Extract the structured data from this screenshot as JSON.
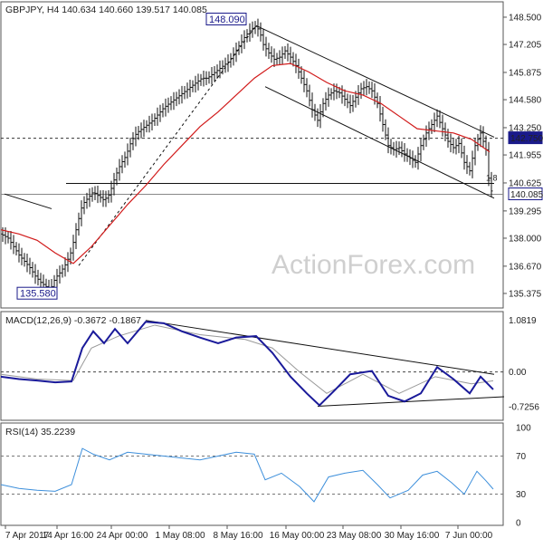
{
  "header": {
    "price": "GBPJPY, H4  140.634 140.660 139.517 140.085",
    "macd": "MACD(12,26,9) -0.3672 -0.1867",
    "rsi": "RSI(14) 35.2239"
  },
  "watermark": "ActionForex.com",
  "colors": {
    "candle": "#111111",
    "sma": "#d11a1a",
    "macd_line": "#1a1a9a",
    "macd_signal": "#999999",
    "rsi_line": "#3d8fdb",
    "trendline": "#111111",
    "level_tag": "#1a1a8a"
  },
  "chart_data": [
    {
      "type": "candlestick",
      "pane": "price",
      "symbol": "GBPJPY",
      "timeframe": "H4",
      "ylim": [
        134.9,
        148.8
      ],
      "yticks": [
        "148.500",
        "147.205",
        "145.875",
        "144.580",
        "143.250",
        "141.955",
        "140.625",
        "139.295",
        "138.000",
        "136.670",
        "135.375"
      ],
      "xticks": [
        "7 Apr 2017",
        "14 Apr 16:00",
        "24 Apr 00:00",
        "1 May 08:00",
        "8 May 16:00",
        "16 May 00:00",
        "23 May 08:00",
        "30 May 16:00",
        "7 Jun 00:00"
      ],
      "ohlc": [
        140.634,
        140.66,
        139.517,
        140.085
      ],
      "close_path": [
        {
          "x": 0,
          "y": 138.2
        },
        {
          "x": 8,
          "y": 138.0
        },
        {
          "x": 14,
          "y": 137.6
        },
        {
          "x": 20,
          "y": 137.2
        },
        {
          "x": 26,
          "y": 136.9
        },
        {
          "x": 32,
          "y": 136.6
        },
        {
          "x": 38,
          "y": 136.2
        },
        {
          "x": 44,
          "y": 135.9
        },
        {
          "x": 50,
          "y": 135.7
        },
        {
          "x": 55,
          "y": 135.6
        },
        {
          "x": 60,
          "y": 136.1
        },
        {
          "x": 66,
          "y": 136.4
        },
        {
          "x": 72,
          "y": 136.8
        },
        {
          "x": 78,
          "y": 137.4
        },
        {
          "x": 84,
          "y": 138.6
        },
        {
          "x": 90,
          "y": 139.6
        },
        {
          "x": 96,
          "y": 139.9
        },
        {
          "x": 102,
          "y": 140.2
        },
        {
          "x": 108,
          "y": 140.0
        },
        {
          "x": 114,
          "y": 139.8
        },
        {
          "x": 120,
          "y": 140.1
        },
        {
          "x": 126,
          "y": 140.9
        },
        {
          "x": 132,
          "y": 141.5
        },
        {
          "x": 138,
          "y": 141.9
        },
        {
          "x": 144,
          "y": 142.6
        },
        {
          "x": 150,
          "y": 143.0
        },
        {
          "x": 156,
          "y": 143.2
        },
        {
          "x": 162,
          "y": 143.4
        },
        {
          "x": 168,
          "y": 143.6
        },
        {
          "x": 174,
          "y": 143.9
        },
        {
          "x": 180,
          "y": 144.2
        },
        {
          "x": 186,
          "y": 144.4
        },
        {
          "x": 192,
          "y": 144.6
        },
        {
          "x": 198,
          "y": 144.8
        },
        {
          "x": 204,
          "y": 145.0
        },
        {
          "x": 210,
          "y": 145.2
        },
        {
          "x": 216,
          "y": 145.4
        },
        {
          "x": 222,
          "y": 145.6
        },
        {
          "x": 228,
          "y": 145.6
        },
        {
          "x": 234,
          "y": 145.8
        },
        {
          "x": 240,
          "y": 146.0
        },
        {
          "x": 246,
          "y": 146.2
        },
        {
          "x": 252,
          "y": 146.4
        },
        {
          "x": 258,
          "y": 146.8
        },
        {
          "x": 264,
          "y": 147.2
        },
        {
          "x": 270,
          "y": 147.6
        },
        {
          "x": 276,
          "y": 147.9
        },
        {
          "x": 282,
          "y": 148.09
        },
        {
          "x": 286,
          "y": 147.8
        },
        {
          "x": 290,
          "y": 147.2
        },
        {
          "x": 296,
          "y": 146.8
        },
        {
          "x": 302,
          "y": 146.5
        },
        {
          "x": 308,
          "y": 146.6
        },
        {
          "x": 314,
          "y": 146.9
        },
        {
          "x": 320,
          "y": 146.6
        },
        {
          "x": 326,
          "y": 146.2
        },
        {
          "x": 332,
          "y": 145.6
        },
        {
          "x": 338,
          "y": 145.0
        },
        {
          "x": 344,
          "y": 144.1
        },
        {
          "x": 350,
          "y": 143.6
        },
        {
          "x": 356,
          "y": 144.4
        },
        {
          "x": 362,
          "y": 144.8
        },
        {
          "x": 368,
          "y": 145.0
        },
        {
          "x": 374,
          "y": 144.9
        },
        {
          "x": 380,
          "y": 144.6
        },
        {
          "x": 386,
          "y": 144.3
        },
        {
          "x": 392,
          "y": 144.7
        },
        {
          "x": 398,
          "y": 145.1
        },
        {
          "x": 404,
          "y": 145.2
        },
        {
          "x": 410,
          "y": 145.0
        },
        {
          "x": 416,
          "y": 144.4
        },
        {
          "x": 422,
          "y": 143.4
        },
        {
          "x": 428,
          "y": 142.4
        },
        {
          "x": 434,
          "y": 142.2
        },
        {
          "x": 440,
          "y": 142.3
        },
        {
          "x": 446,
          "y": 142.0
        },
        {
          "x": 452,
          "y": 141.8
        },
        {
          "x": 458,
          "y": 141.6
        },
        {
          "x": 464,
          "y": 142.4
        },
        {
          "x": 470,
          "y": 143.0
        },
        {
          "x": 476,
          "y": 143.4
        },
        {
          "x": 482,
          "y": 143.8
        },
        {
          "x": 488,
          "y": 143.2
        },
        {
          "x": 494,
          "y": 142.6
        },
        {
          "x": 500,
          "y": 142.3
        },
        {
          "x": 506,
          "y": 142.5
        },
        {
          "x": 512,
          "y": 141.6
        },
        {
          "x": 518,
          "y": 141.2
        },
        {
          "x": 524,
          "y": 142.4
        },
        {
          "x": 530,
          "y": 143.0
        },
        {
          "x": 536,
          "y": 142.2
        },
        {
          "x": 540,
          "y": 140.4
        },
        {
          "x": 544,
          "y": 140.085
        }
      ],
      "sma_path": [
        {
          "x": 0,
          "y": 138.4
        },
        {
          "x": 20,
          "y": 138.2
        },
        {
          "x": 40,
          "y": 137.9
        },
        {
          "x": 60,
          "y": 137.3
        },
        {
          "x": 80,
          "y": 136.8
        },
        {
          "x": 100,
          "y": 137.6
        },
        {
          "x": 120,
          "y": 138.6
        },
        {
          "x": 140,
          "y": 139.6
        },
        {
          "x": 160,
          "y": 140.5
        },
        {
          "x": 180,
          "y": 141.5
        },
        {
          "x": 200,
          "y": 142.4
        },
        {
          "x": 220,
          "y": 143.3
        },
        {
          "x": 240,
          "y": 144.0
        },
        {
          "x": 260,
          "y": 144.8
        },
        {
          "x": 280,
          "y": 145.6
        },
        {
          "x": 300,
          "y": 146.2
        },
        {
          "x": 320,
          "y": 146.3
        },
        {
          "x": 340,
          "y": 145.9
        },
        {
          "x": 360,
          "y": 145.4
        },
        {
          "x": 380,
          "y": 145.0
        },
        {
          "x": 400,
          "y": 144.8
        },
        {
          "x": 420,
          "y": 144.4
        },
        {
          "x": 440,
          "y": 143.8
        },
        {
          "x": 460,
          "y": 143.2
        },
        {
          "x": 480,
          "y": 143.1
        },
        {
          "x": 500,
          "y": 143.0
        },
        {
          "x": 520,
          "y": 142.7
        },
        {
          "x": 540,
          "y": 142.1
        }
      ],
      "annotations": [
        {
          "label": "148.090",
          "x": 282,
          "y": 148.09
        },
        {
          "label": "135.580",
          "x": 55,
          "y": 135.58
        },
        {
          "label": "142.750",
          "level": 142.75,
          "style": "dashed"
        },
        {
          "label": "140.085",
          "level": 140.085,
          "style": "solid"
        },
        {
          "label": "1.8"
        }
      ],
      "trendlines": [
        {
          "name": "channel-top",
          "from": {
            "x": 282,
            "y": 148.1
          },
          "to": {
            "x": 545,
            "y": 142.8
          }
        },
        {
          "name": "channel-bottom",
          "from": {
            "x": 292,
            "y": 145.2
          },
          "to": {
            "x": 545,
            "y": 139.9
          }
        },
        {
          "name": "support-dashed",
          "from": {
            "x": 86,
            "y": 136.7
          },
          "to": {
            "x": 282,
            "y": 148.1
          }
        },
        {
          "name": "horizontal-support",
          "from": {
            "x": 72,
            "y": 140.6
          },
          "to": {
            "x": 545,
            "y": 140.6
          }
        },
        {
          "name": "left-line",
          "from": {
            "x": 4,
            "y": 140.1
          },
          "to": {
            "x": 56,
            "y": 139.4
          }
        }
      ]
    },
    {
      "type": "line",
      "pane": "macd",
      "ylim": [
        -0.9,
        1.15
      ],
      "yticks": [
        "1.0819",
        "0.00",
        "-0.7256"
      ],
      "series": [
        {
          "name": "MACD",
          "values": [
            {
              "x": 0,
              "y": -0.1
            },
            {
              "x": 20,
              "y": -0.15
            },
            {
              "x": 40,
              "y": -0.18
            },
            {
              "x": 60,
              "y": -0.22
            },
            {
              "x": 78,
              "y": -0.2
            },
            {
              "x": 90,
              "y": 0.5
            },
            {
              "x": 102,
              "y": 0.85
            },
            {
              "x": 114,
              "y": 0.6
            },
            {
              "x": 126,
              "y": 0.9
            },
            {
              "x": 140,
              "y": 0.6
            },
            {
              "x": 160,
              "y": 1.05
            },
            {
              "x": 180,
              "y": 1.02
            },
            {
              "x": 200,
              "y": 0.85
            },
            {
              "x": 220,
              "y": 0.72
            },
            {
              "x": 240,
              "y": 0.6
            },
            {
              "x": 260,
              "y": 0.72
            },
            {
              "x": 282,
              "y": 0.75
            },
            {
              "x": 300,
              "y": 0.4
            },
            {
              "x": 320,
              "y": -0.1
            },
            {
              "x": 338,
              "y": -0.45
            },
            {
              "x": 352,
              "y": -0.7
            },
            {
              "x": 368,
              "y": -0.4
            },
            {
              "x": 386,
              "y": -0.05
            },
            {
              "x": 410,
              "y": 0.02
            },
            {
              "x": 428,
              "y": -0.5
            },
            {
              "x": 446,
              "y": -0.62
            },
            {
              "x": 464,
              "y": -0.45
            },
            {
              "x": 482,
              "y": 0.1
            },
            {
              "x": 500,
              "y": -0.15
            },
            {
              "x": 518,
              "y": -0.45
            },
            {
              "x": 530,
              "y": -0.1
            },
            {
              "x": 544,
              "y": -0.3672
            }
          ]
        },
        {
          "name": "Signal",
          "values": [
            {
              "x": 0,
              "y": -0.05
            },
            {
              "x": 40,
              "y": -0.15
            },
            {
              "x": 80,
              "y": -0.18
            },
            {
              "x": 100,
              "y": 0.5
            },
            {
              "x": 130,
              "y": 0.75
            },
            {
              "x": 170,
              "y": 0.98
            },
            {
              "x": 220,
              "y": 0.78
            },
            {
              "x": 270,
              "y": 0.68
            },
            {
              "x": 300,
              "y": 0.5
            },
            {
              "x": 330,
              "y": 0.0
            },
            {
              "x": 360,
              "y": -0.45
            },
            {
              "x": 400,
              "y": -0.05
            },
            {
              "x": 440,
              "y": -0.45
            },
            {
              "x": 480,
              "y": -0.1
            },
            {
              "x": 520,
              "y": -0.25
            },
            {
              "x": 544,
              "y": -0.1867
            }
          ]
        }
      ]
    },
    {
      "type": "line",
      "pane": "rsi",
      "ylim": [
        0,
        100
      ],
      "yticks": [
        "100",
        "70",
        "30",
        "0"
      ],
      "levels": [
        70,
        30
      ],
      "series": [
        {
          "name": "RSI(14)",
          "values": [
            {
              "x": 0,
              "y": 40
            },
            {
              "x": 20,
              "y": 36
            },
            {
              "x": 40,
              "y": 34
            },
            {
              "x": 60,
              "y": 33
            },
            {
              "x": 78,
              "y": 40
            },
            {
              "x": 90,
              "y": 78
            },
            {
              "x": 102,
              "y": 72
            },
            {
              "x": 120,
              "y": 66
            },
            {
              "x": 140,
              "y": 74
            },
            {
              "x": 160,
              "y": 72
            },
            {
              "x": 180,
              "y": 70
            },
            {
              "x": 200,
              "y": 68
            },
            {
              "x": 220,
              "y": 66
            },
            {
              "x": 240,
              "y": 70
            },
            {
              "x": 260,
              "y": 74
            },
            {
              "x": 280,
              "y": 72
            },
            {
              "x": 292,
              "y": 45
            },
            {
              "x": 310,
              "y": 52
            },
            {
              "x": 330,
              "y": 38
            },
            {
              "x": 346,
              "y": 22
            },
            {
              "x": 362,
              "y": 48
            },
            {
              "x": 380,
              "y": 52
            },
            {
              "x": 400,
              "y": 55
            },
            {
              "x": 416,
              "y": 40
            },
            {
              "x": 430,
              "y": 26
            },
            {
              "x": 450,
              "y": 34
            },
            {
              "x": 466,
              "y": 50
            },
            {
              "x": 482,
              "y": 54
            },
            {
              "x": 498,
              "y": 42
            },
            {
              "x": 512,
              "y": 30
            },
            {
              "x": 526,
              "y": 54
            },
            {
              "x": 536,
              "y": 44
            },
            {
              "x": 544,
              "y": 35.2239
            }
          ]
        }
      ]
    }
  ]
}
